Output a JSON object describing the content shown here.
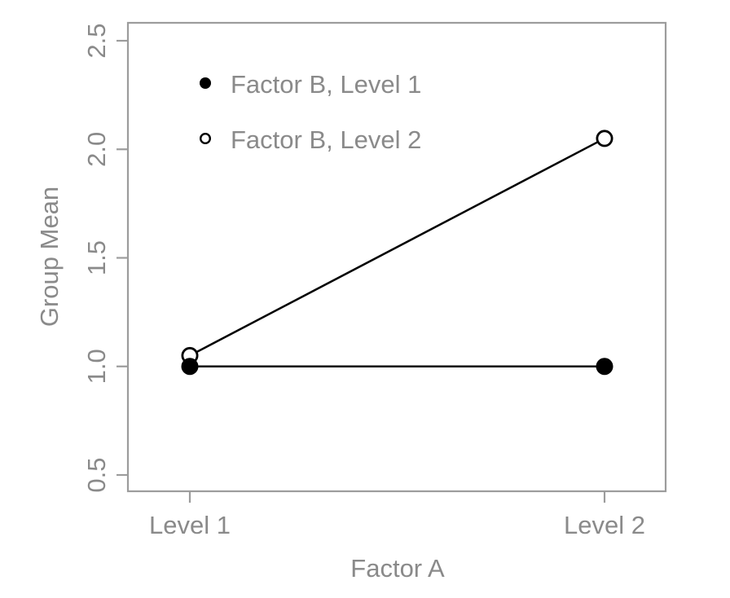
{
  "chart_data": {
    "type": "line",
    "title": "",
    "xlabel": "Factor A",
    "ylabel": "Group Mean",
    "categories": [
      "Level 1",
      "Level 2"
    ],
    "series": [
      {
        "name": "Factor B, Level 1",
        "marker": "filled-circle",
        "values": [
          1.0,
          1.0
        ]
      },
      {
        "name": "Factor B, Level 2",
        "marker": "open-circle",
        "values": [
          1.05,
          2.05
        ]
      }
    ],
    "ylim": [
      0.5,
      2.5
    ],
    "yticks": [
      0.5,
      1.0,
      1.5,
      2.0,
      2.5
    ],
    "ytick_labels": [
      "0.5",
      "1.0",
      "1.5",
      "2.0",
      "2.5"
    ],
    "grid": false,
    "legend": {
      "position": "top-left-inside",
      "entries": [
        {
          "label": "Factor B, Level 1",
          "marker": "filled-circle"
        },
        {
          "label": "Factor B, Level 2",
          "marker": "open-circle"
        }
      ]
    },
    "colors": {
      "series": "#000000",
      "axis": "#9c9c9c",
      "labels": "#8a8a8a",
      "background": "#ffffff"
    }
  }
}
